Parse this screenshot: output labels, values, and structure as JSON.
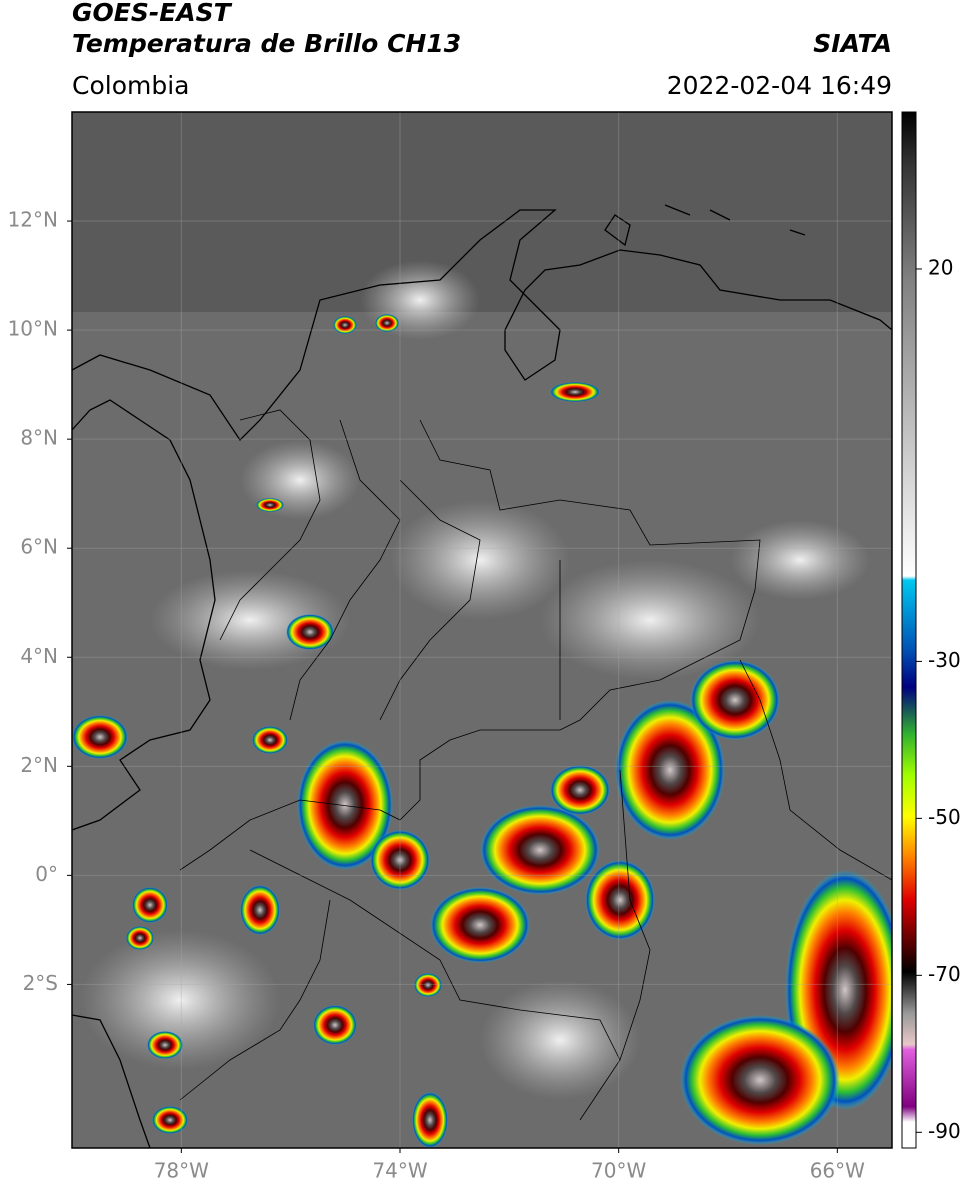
{
  "header": {
    "title": "GOES-EAST",
    "subtitle": "Temperatura de Brillo CH13",
    "source": "SIATA",
    "region": "Colombia",
    "datetime": "2022-02-04 16:49"
  },
  "map": {
    "xlim": [
      -80,
      -65
    ],
    "ylim": [
      -5,
      14
    ],
    "xticks": [
      {
        "value": -78,
        "label": "78°W"
      },
      {
        "value": -74,
        "label": "74°W"
      },
      {
        "value": -70,
        "label": "70°W"
      },
      {
        "value": -66,
        "label": "66°W"
      }
    ],
    "yticks": [
      {
        "value": 12,
        "label": "12°N"
      },
      {
        "value": 10,
        "label": "10°N"
      },
      {
        "value": 8,
        "label": "8°N"
      },
      {
        "value": 6,
        "label": "6°N"
      },
      {
        "value": 4,
        "label": "4°N"
      },
      {
        "value": 2,
        "label": "2°N"
      },
      {
        "value": 0,
        "label": "0°"
      },
      {
        "value": -2,
        "label": "2°S"
      }
    ],
    "grid": true
  },
  "colorbar": {
    "lim": [
      -92,
      40
    ],
    "ticks": [
      20,
      -30,
      -50,
      -70,
      -90
    ]
  }
}
